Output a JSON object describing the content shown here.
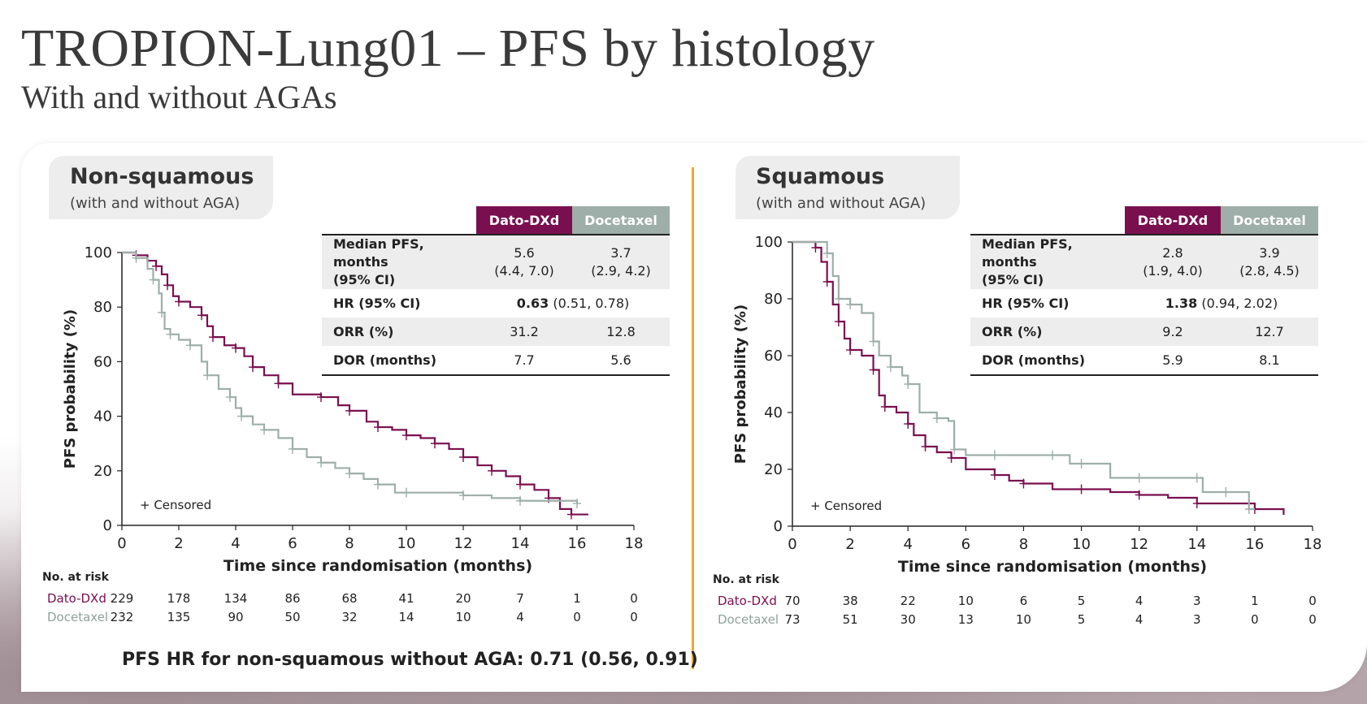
{
  "title": "TROPION-Lung01 – PFS by histology",
  "subtitle": "With and without AGAs",
  "colors": {
    "dato": "#7a0f4f",
    "docetaxel": "#9eaea8",
    "divider": "#e8a93a"
  },
  "table_headers": {
    "dato": "Dato-DXd",
    "docetaxel": "Docetaxel"
  },
  "censored_label": "+ Censored",
  "risk_title": "No. at risk",
  "footnote": "PFS HR for non-squamous without AGA: 0.71 (0.56, 0.91)",
  "panels": [
    {
      "title": "Non-squamous",
      "subtitle": "(with and without AGA)",
      "stats": {
        "median_label_1": "Median PFS, months",
        "median_label_2": "(95% CI)",
        "median_dato": "5.6",
        "median_dato_ci": "(4.4, 7.0)",
        "median_doc": "3.7",
        "median_doc_ci": "(2.9, 4.2)",
        "hr_label": "HR (95% CI)",
        "hr_value": "0.63",
        "hr_ci": "(0.51, 0.78)",
        "orr_label": "ORR (%)",
        "orr_dato": "31.2",
        "orr_doc": "12.8",
        "dor_label": "DOR (months)",
        "dor_dato": "7.7",
        "dor_doc": "5.6"
      },
      "risk": {
        "dato_name": "Dato-DXd",
        "doc_name": "Docetaxel",
        "dato": [
          "229",
          "178",
          "134",
          "86",
          "68",
          "41",
          "20",
          "7",
          "1",
          "0"
        ],
        "doc": [
          "232",
          "135",
          "90",
          "50",
          "32",
          "14",
          "10",
          "4",
          "0",
          "0"
        ]
      }
    },
    {
      "title": "Squamous",
      "subtitle": "(with and without AGA)",
      "stats": {
        "median_label_1": "Median PFS, months",
        "median_label_2": "(95% CI)",
        "median_dato": "2.8",
        "median_dato_ci": "(1.9, 4.0)",
        "median_doc": "3.9",
        "median_doc_ci": "(2.8, 4.5)",
        "hr_label": "HR (95% CI)",
        "hr_value": "1.38",
        "hr_ci": "(0.94, 2.02)",
        "orr_label": "ORR (%)",
        "orr_dato": "9.2",
        "orr_doc": "12.7",
        "dor_label": "DOR (months)",
        "dor_dato": "5.9",
        "dor_doc": "8.1"
      },
      "risk": {
        "dato_name": "Dato-DXd",
        "doc_name": "Docetaxel",
        "dato": [
          "70",
          "38",
          "22",
          "10",
          "6",
          "5",
          "4",
          "3",
          "1",
          "0"
        ],
        "doc": [
          "73",
          "51",
          "30",
          "13",
          "10",
          "5",
          "4",
          "3",
          "0",
          "0"
        ]
      }
    }
  ],
  "chart_data": [
    {
      "type": "line",
      "xlabel": "Time since randomisation (months)",
      "ylabel": "PFS probability (%)",
      "xlim": [
        0,
        18
      ],
      "ylim": [
        0,
        100
      ],
      "xticks": [
        "0",
        "2",
        "4",
        "6",
        "8",
        "10",
        "12",
        "14",
        "16",
        "18"
      ],
      "yticks": [
        "0",
        "20",
        "40",
        "60",
        "80",
        "100"
      ],
      "series": [
        {
          "name": "Dato-DXd",
          "color": "#7a0f4f",
          "x": [
            0,
            0.5,
            0.9,
            1.2,
            1.4,
            1.6,
            1.8,
            2.0,
            2.4,
            2.8,
            3.0,
            3.2,
            3.6,
            4.0,
            4.3,
            4.6,
            5.0,
            5.5,
            6.0,
            7.0,
            7.6,
            8.0,
            8.6,
            9.0,
            9.5,
            10.0,
            10.5,
            11.0,
            11.5,
            12.0,
            12.5,
            13.0,
            13.5,
            14.0,
            14.5,
            15.0,
            15.4,
            15.8,
            16.4
          ],
          "y": [
            100,
            99,
            97,
            95,
            92,
            88,
            84,
            82,
            80,
            77,
            73,
            69,
            66,
            65,
            62,
            58,
            55,
            52,
            48,
            47,
            44,
            42,
            38,
            36,
            35,
            33,
            32,
            30,
            28,
            25,
            22,
            20,
            18,
            15,
            13,
            10,
            6,
            4,
            4
          ]
        },
        {
          "name": "Docetaxel",
          "color": "#9eaea8",
          "x": [
            0,
            0.5,
            0.9,
            1.1,
            1.3,
            1.4,
            1.5,
            1.7,
            2.0,
            2.4,
            2.8,
            3.0,
            3.4,
            3.8,
            4.0,
            4.2,
            4.6,
            5.0,
            5.5,
            6.0,
            6.5,
            7.0,
            7.5,
            8.0,
            8.5,
            9.0,
            9.6,
            10.0,
            11.0,
            12.0,
            13.0,
            14.0,
            15.0,
            16.0
          ],
          "y": [
            100,
            98,
            94,
            90,
            85,
            78,
            72,
            70,
            68,
            66,
            60,
            55,
            50,
            47,
            43,
            40,
            37,
            35,
            32,
            28,
            25,
            23,
            21,
            19,
            17,
            15,
            12,
            12,
            12,
            11,
            10,
            9,
            9,
            8
          ]
        }
      ]
    },
    {
      "type": "line",
      "xlabel": "Time since randomisation (months)",
      "ylabel": "PFS  probability (%)",
      "xlim": [
        0,
        18
      ],
      "ylim": [
        0,
        100
      ],
      "xticks": [
        "0",
        "2",
        "4",
        "6",
        "8",
        "10",
        "12",
        "14",
        "16",
        "18"
      ],
      "yticks": [
        "0",
        "20",
        "40",
        "60",
        "80",
        "100"
      ],
      "series": [
        {
          "name": "Dato-DXd",
          "color": "#7a0f4f",
          "x": [
            0,
            0.8,
            1.0,
            1.2,
            1.4,
            1.6,
            1.8,
            2.0,
            2.4,
            2.8,
            3.0,
            3.2,
            3.6,
            4.0,
            4.2,
            4.6,
            5.0,
            5.5,
            6.0,
            7.0,
            7.5,
            8.0,
            9.0,
            10.0,
            11.0,
            12.0,
            13.0,
            14.0,
            15.0,
            16.0,
            17.0
          ],
          "y": [
            100,
            98,
            93,
            86,
            78,
            72,
            66,
            62,
            60,
            55,
            46,
            42,
            40,
            36,
            32,
            28,
            26,
            24,
            20,
            18,
            16,
            15,
            13,
            13,
            12,
            11,
            10,
            8,
            8,
            6,
            4
          ]
        },
        {
          "name": "Docetaxel",
          "color": "#9eaea8",
          "x": [
            0,
            1.2,
            1.4,
            1.6,
            1.8,
            2.0,
            2.4,
            2.8,
            3.0,
            3.4,
            3.8,
            4.0,
            4.4,
            5.0,
            5.4,
            5.6,
            6.0,
            7.0,
            8.0,
            9.0,
            9.6,
            10.0,
            11.0,
            12.0,
            13.0,
            14.0,
            14.2,
            15.0,
            15.4,
            15.8,
            16.0
          ],
          "y": [
            100,
            96,
            88,
            80,
            80,
            78,
            75,
            65,
            60,
            56,
            53,
            50,
            40,
            38,
            37,
            27,
            25,
            25,
            25,
            25,
            22,
            22,
            17,
            17,
            17,
            17,
            12,
            12,
            12,
            6,
            6
          ]
        }
      ]
    }
  ]
}
